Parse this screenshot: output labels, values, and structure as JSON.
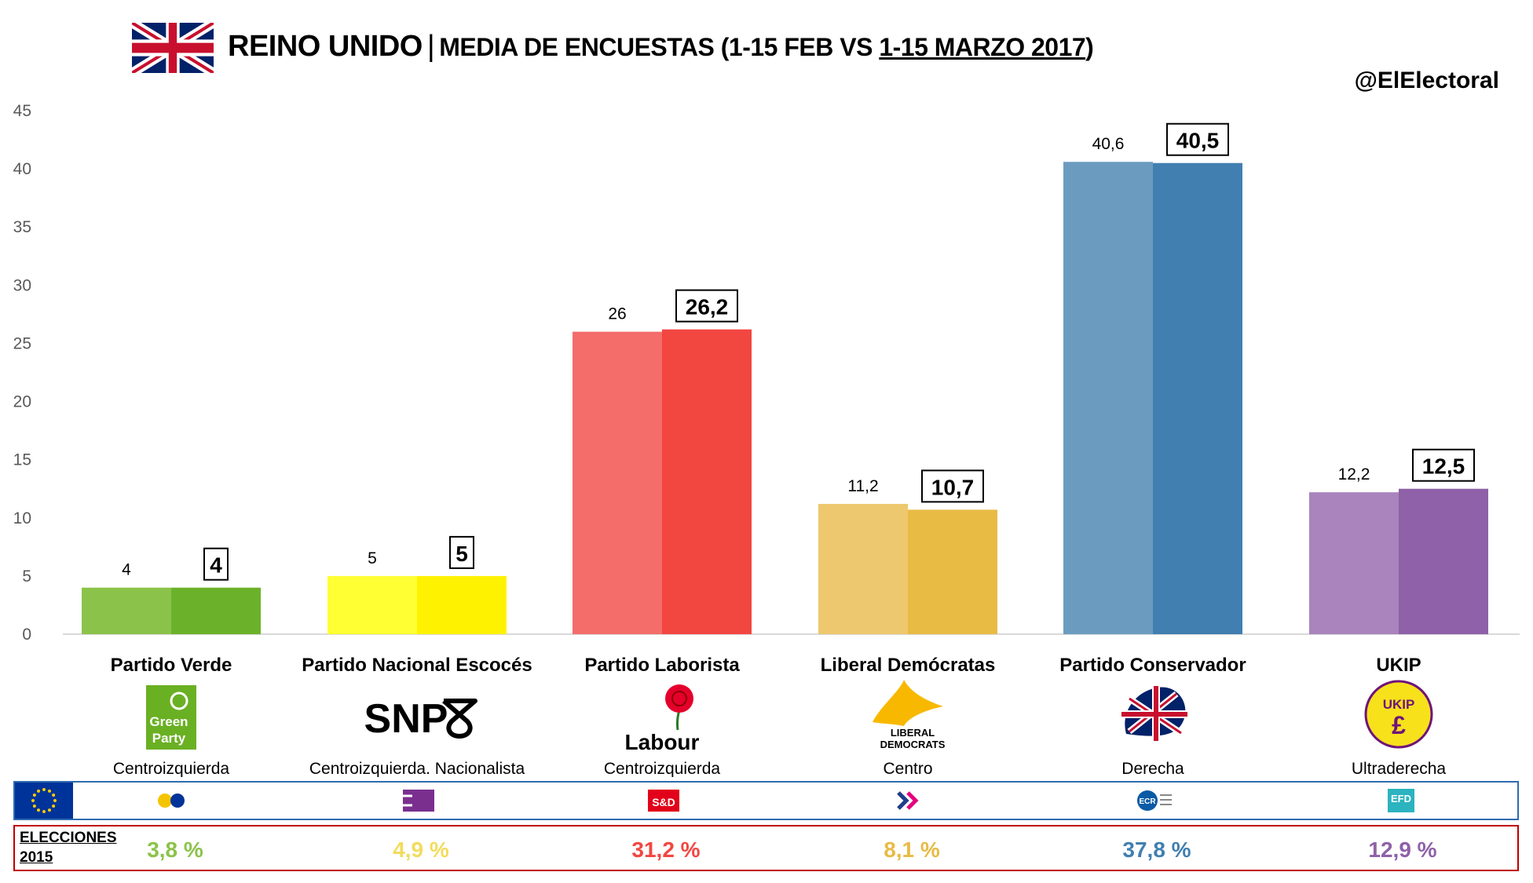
{
  "header": {
    "title_main": "REINO UNIDO",
    "title_sep": "|",
    "title_sub_prefix": "MEDIA DE ENCUESTAS (1-15 FEB VS ",
    "title_sub_underlined": "1-15 MARZO 2017",
    "title_sub_suffix": ")",
    "handle": "@ElElectoral"
  },
  "chart_data": {
    "type": "bar",
    "ylim": [
      0,
      45
    ],
    "yticks": [
      "0",
      "5",
      "10",
      "15",
      "20",
      "25",
      "30",
      "35",
      "40",
      "45"
    ],
    "ytick_values": [
      0,
      5,
      10,
      15,
      20,
      25,
      30,
      35,
      40,
      45
    ],
    "categories": [
      "Partido Verde",
      "Partido Nacional Escocés",
      "Partido Laborista",
      "Liberal Demócratas",
      "Partido Conservador",
      "UKIP"
    ],
    "series": [
      {
        "values": [
          4,
          5,
          26,
          11.2,
          40.6,
          12.2
        ],
        "labels": [
          "4",
          "5",
          "26",
          "11,2",
          "40,6",
          "12,2"
        ]
      },
      {
        "values": [
          4,
          5,
          26.2,
          10.7,
          40.5,
          12.5
        ],
        "labels": [
          "4",
          "5",
          "26,2",
          "10,7",
          "40,5",
          "12,5"
        ]
      }
    ],
    "colors_light": [
      "#8bc34a",
      "#ffff33",
      "#f46d6a",
      "#edc86e",
      "#6b9cc0",
      "#a984bd"
    ],
    "colors_dark": [
      "#6bb22a",
      "#fff200",
      "#f24641",
      "#e8bb45",
      "#417fb0",
      "#8e61a8"
    ]
  },
  "parties": [
    {
      "logo": "green-party-logo",
      "logo_text": [
        "Green",
        "Party"
      ],
      "ideology": "Centroizquierda"
    },
    {
      "logo": "snp-logo",
      "logo_text": [
        "SNP"
      ],
      "ideology": "Centroizquierda. Nacionalista"
    },
    {
      "logo": "labour-logo",
      "logo_text": [
        "Labour"
      ],
      "ideology": "Centroizquierda"
    },
    {
      "logo": "liberal-democrats-logo",
      "logo_text": [
        "LIBERAL",
        "DEMOCRATS"
      ],
      "ideology": "Centro"
    },
    {
      "logo": "conservative-logo",
      "logo_text": [],
      "ideology": "Derecha"
    },
    {
      "logo": "ukip-logo",
      "logo_text": [
        "UKIP"
      ],
      "ideology": "Ultraderecha"
    }
  ],
  "eu_groups": [
    {
      "icon": "greens-efa-icon"
    },
    {
      "icon": "gue-ngl-icon"
    },
    {
      "icon": "s-and-d-icon",
      "text": "S&D"
    },
    {
      "icon": "alde-icon"
    },
    {
      "icon": "ecr-icon",
      "text": "ECR"
    },
    {
      "icon": "efdd-icon",
      "text": "EFD"
    }
  ],
  "elections_2015": {
    "label_line1": "ELECCIONES",
    "label_line2": "2015",
    "values": [
      "3,8 %",
      "4,9 %",
      "31,2 %",
      "8,1 %",
      "37,8 %",
      "12,9 %"
    ],
    "colors": [
      "#8bc34a",
      "#f2dc5d",
      "#f24641",
      "#e8bb45",
      "#417fb0",
      "#8e61a8"
    ]
  },
  "colors": {
    "eu_blue": "#003399",
    "eu_star": "#ffcc00",
    "eu_row_border": "#2e6bb0",
    "elections_border": "#c00000"
  }
}
